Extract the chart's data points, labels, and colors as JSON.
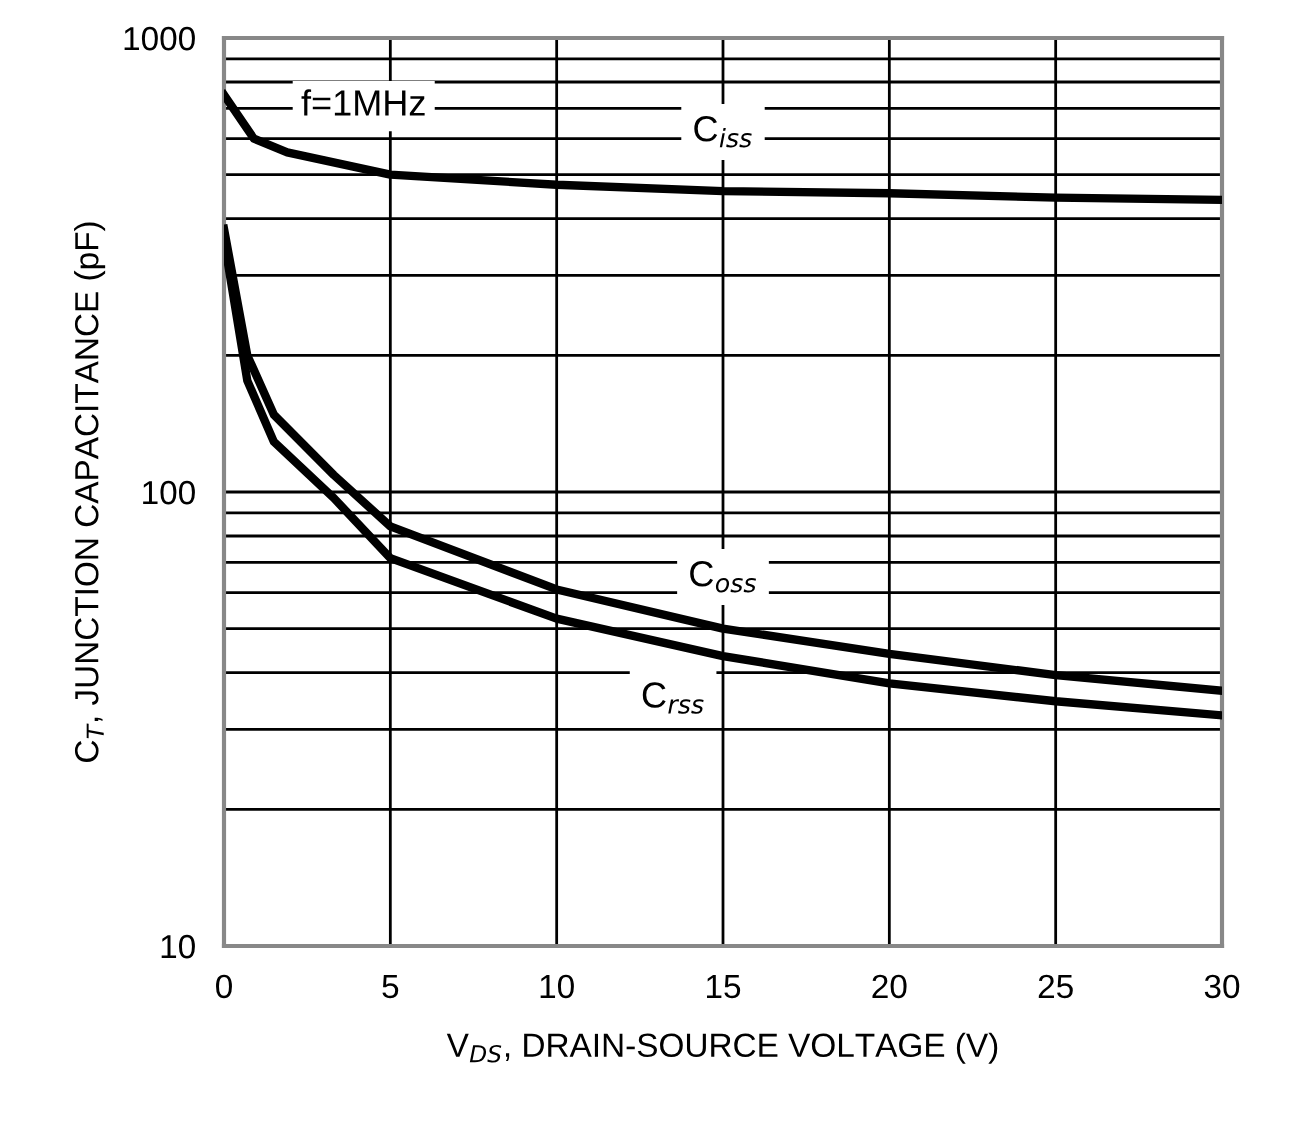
{
  "chart_data": {
    "type": "line",
    "log": "y",
    "grid": true,
    "marker": "none",
    "line_style": "solid",
    "xlabel": "V$_{DS}$, DRAIN-SOURCE VOLTAGE (V)",
    "ylabel": "C$_{T}$, JUNCTION CAPACITANCE (pF)",
    "xlim": [
      0,
      30
    ],
    "ylim": [
      10,
      1000
    ],
    "xticks": [
      0,
      5,
      10,
      15,
      20,
      25,
      30
    ],
    "yticks": [
      10,
      100,
      1000
    ],
    "annotations": [
      "f=1MHz"
    ],
    "series": [
      {
        "name": "C$_{iss}$",
        "color": "#000000",
        "x": [
          0,
          0.9,
          1.9,
          5,
          10,
          15,
          20,
          25,
          30
        ],
        "values": [
          750,
          600,
          560,
          500,
          475,
          460,
          455,
          445,
          440
        ]
      },
      {
        "name": "C$_{oss}$",
        "color": "#000000",
        "x": [
          0,
          0.7,
          1.5,
          3.3,
          5,
          10,
          15,
          20,
          25,
          30
        ],
        "values": [
          380,
          200,
          148,
          109,
          84,
          61,
          50,
          44,
          39.5,
          36.5
        ]
      },
      {
        "name": "C$_{rss}$",
        "color": "#000000",
        "x": [
          0,
          0.7,
          1.5,
          3.3,
          5,
          10,
          15,
          20,
          25,
          30
        ],
        "values": [
          360,
          176,
          129,
          97,
          71.5,
          52.6,
          43.5,
          37.9,
          34.6,
          32.2
        ]
      }
    ]
  }
}
